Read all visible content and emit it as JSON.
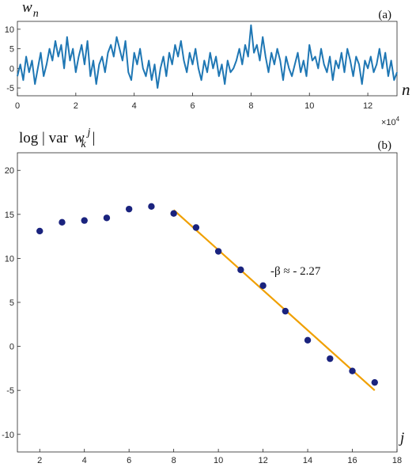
{
  "chart_data": [
    {
      "type": "line",
      "panel_label": "(a)",
      "ylabel": "w",
      "ylabel_sub": "n",
      "xlabel": "n",
      "x_multiplier": "×10",
      "x_multiplier_exp": "4",
      "xlim": [
        0,
        13
      ],
      "ylim": [
        -7,
        12
      ],
      "xticks": [
        "0",
        "2",
        "4",
        "6",
        "8",
        "10",
        "12"
      ],
      "yticks": [
        "-5",
        "0",
        "5",
        "10"
      ],
      "grid": false,
      "color": "#1f77b4",
      "series": [
        {
          "x": [
            0.0,
            0.1,
            0.2,
            0.3,
            0.4,
            0.5,
            0.6,
            0.7,
            0.8,
            0.9,
            1.0,
            1.1,
            1.2,
            1.3,
            1.4,
            1.5,
            1.6,
            1.7,
            1.8,
            1.9,
            2.0,
            2.1,
            2.2,
            2.3,
            2.4,
            2.5,
            2.6,
            2.7,
            2.8,
            2.9,
            3.0,
            3.1,
            3.2,
            3.3,
            3.4,
            3.5,
            3.6,
            3.7,
            3.8,
            3.9,
            4.0,
            4.1,
            4.2,
            4.3,
            4.4,
            4.5,
            4.6,
            4.7,
            4.8,
            4.9,
            5.0,
            5.1,
            5.2,
            5.3,
            5.4,
            5.5,
            5.6,
            5.7,
            5.8,
            5.9,
            6.0,
            6.1,
            6.2,
            6.3,
            6.4,
            6.5,
            6.6,
            6.7,
            6.8,
            6.9,
            7.0,
            7.1,
            7.2,
            7.3,
            7.4,
            7.5,
            7.6,
            7.7,
            7.8,
            7.9,
            8.0,
            8.1,
            8.2,
            8.3,
            8.4,
            8.5,
            8.6,
            8.7,
            8.8,
            8.9,
            9.0,
            9.1,
            9.2,
            9.3,
            9.4,
            9.5,
            9.6,
            9.7,
            9.8,
            9.9,
            10.0,
            10.1,
            10.2,
            10.3,
            10.4,
            10.5,
            10.6,
            10.7,
            10.8,
            10.9,
            11.0,
            11.1,
            11.2,
            11.3,
            11.4,
            11.5,
            11.6,
            11.7,
            11.8,
            11.9,
            12.0,
            12.1,
            12.2,
            12.3,
            12.4,
            12.5,
            12.6,
            12.7,
            12.8,
            12.9,
            13.0
          ],
          "values": [
            -2,
            1,
            -3,
            3,
            -1,
            2,
            -4,
            0,
            4,
            -2,
            1,
            5,
            2,
            7,
            3,
            6,
            0,
            8,
            2,
            5,
            -1,
            3,
            6,
            1,
            7,
            -2,
            2,
            -4,
            1,
            3,
            -1,
            4,
            6,
            3,
            8,
            5,
            2,
            7,
            -1,
            -3,
            4,
            1,
            5,
            0,
            -2,
            2,
            -3,
            1,
            -5,
            0,
            3,
            -2,
            4,
            1,
            6,
            3,
            7,
            2,
            -1,
            4,
            1,
            5,
            0,
            -3,
            2,
            -1,
            4,
            0,
            3,
            -2,
            1,
            -4,
            2,
            -1,
            0,
            2,
            5,
            1,
            6,
            3,
            11,
            4,
            6,
            2,
            8,
            3,
            -1,
            4,
            1,
            5,
            2,
            -3,
            3,
            0,
            -2,
            1,
            4,
            -1,
            2,
            -2,
            6,
            2,
            3,
            0,
            5,
            1,
            -1,
            3,
            -3,
            2,
            0,
            4,
            -1,
            5,
            2,
            -2,
            3,
            1,
            -4,
            2,
            0,
            3,
            -1,
            1,
            5,
            0,
            4,
            -2,
            2,
            -3,
            -1
          ]
        }
      ]
    },
    {
      "type": "scatter",
      "panel_label": "(b)",
      "ylabel_pre": "log | var",
      "ylabel_var": "w",
      "ylabel_sub": "k",
      "ylabel_sup": "j",
      "ylabel_post": "|",
      "xlabel": "j",
      "xlim": [
        1,
        18
      ],
      "ylim": [
        -12,
        22
      ],
      "xticks": [
        "2",
        "4",
        "6",
        "8",
        "10",
        "12",
        "14",
        "16",
        "18"
      ],
      "yticks": [
        "-10",
        "-5",
        "0",
        "5",
        "10",
        "15",
        "20"
      ],
      "grid": false,
      "point_color": "#1a237e",
      "fit_color": "#f0a000",
      "annotation": "-β ≈ - 2.27",
      "points": [
        {
          "x": 2,
          "y": 13.1
        },
        {
          "x": 3,
          "y": 14.1
        },
        {
          "x": 4,
          "y": 14.3
        },
        {
          "x": 5,
          "y": 14.6
        },
        {
          "x": 6,
          "y": 15.6
        },
        {
          "x": 7,
          "y": 15.9
        },
        {
          "x": 8,
          "y": 15.1
        },
        {
          "x": 9,
          "y": 13.5
        },
        {
          "x": 10,
          "y": 10.8
        },
        {
          "x": 11,
          "y": 8.7
        },
        {
          "x": 12,
          "y": 6.9
        },
        {
          "x": 13,
          "y": 4.0
        },
        {
          "x": 14,
          "y": 0.7
        },
        {
          "x": 15,
          "y": -1.4
        },
        {
          "x": 16,
          "y": -2.8
        },
        {
          "x": 17,
          "y": -4.1
        }
      ],
      "fit_line": {
        "x": [
          8,
          17
        ],
        "y": [
          15.5,
          -5.0
        ]
      }
    }
  ]
}
